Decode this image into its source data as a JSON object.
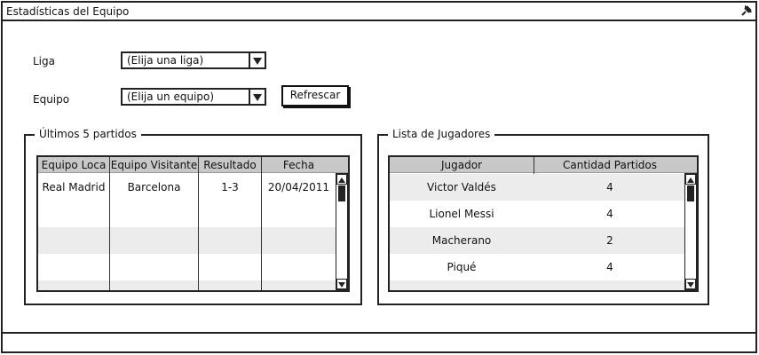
{
  "window": {
    "title": "Estadísticas del Equipo",
    "close_icon": "pin-icon"
  },
  "filters": {
    "liga_label": "Liga",
    "liga_value": "(Elija una liga)",
    "equipo_label": "Equipo",
    "equipo_value": "(Elija un equipo)",
    "refresh_label": "Refrescar"
  },
  "matches": {
    "legend": "Últimos 5 partidos",
    "columns": [
      "Equipo Loca",
      "Equipo Visitante",
      "Resultado",
      "Fecha"
    ],
    "rows": [
      [
        "Real Madrid",
        "Barcelona",
        "1-3",
        "20/04/2011"
      ]
    ]
  },
  "players": {
    "legend": "Lista de Jugadores",
    "columns": [
      "Jugador",
      "Cantidad Partidos"
    ],
    "rows": [
      [
        "Victor Valdés",
        "4"
      ],
      [
        "Lionel Messi",
        "4"
      ],
      [
        "Macherano",
        "2"
      ],
      [
        "Piqué",
        "4"
      ]
    ]
  },
  "colors": {
    "header_bg": "#c8c8c8",
    "alt_row": "#ececec",
    "border": "#222222"
  }
}
